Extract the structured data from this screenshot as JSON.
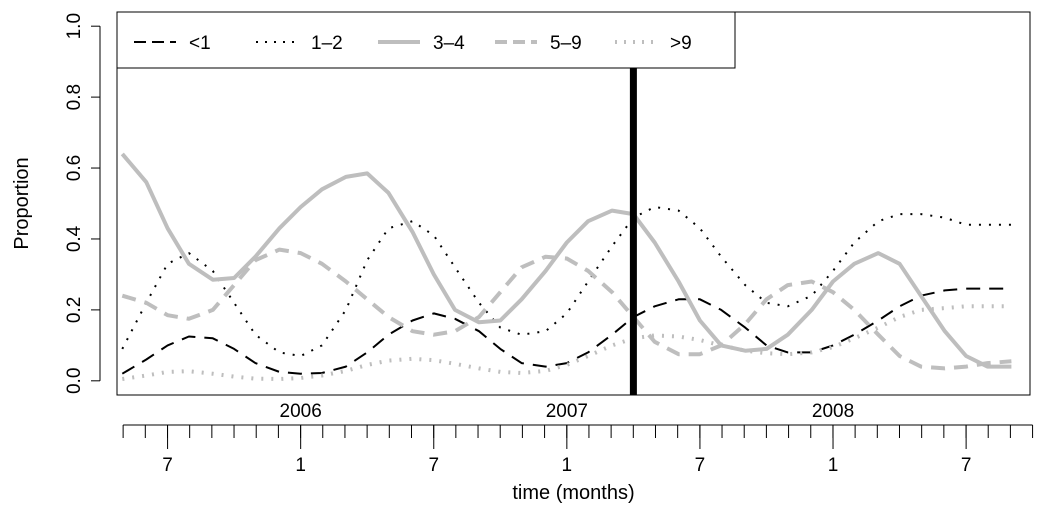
{
  "chart_data": {
    "type": "line",
    "title": "",
    "xlabel": "time (months)",
    "ylabel": "Proportion",
    "xlim": [
      2005.31,
      2008.74
    ],
    "ylim": [
      -0.04,
      1.04
    ],
    "y_ticks": [
      0.0,
      0.2,
      0.4,
      0.6,
      0.8,
      1.0
    ],
    "y_tick_labels": [
      "0.0",
      "0.2",
      "0.4",
      "0.6",
      "0.8",
      "1.0"
    ],
    "year_labels": [
      {
        "label": "2006",
        "x": 2006.0
      },
      {
        "label": "2007",
        "x": 2007.0
      },
      {
        "label": "2008",
        "x": 2008.0
      }
    ],
    "month_tick_start": 2005.333,
    "month_tick_count": 42,
    "month_labels": [
      {
        "label": "7",
        "x": 2005.5
      },
      {
        "label": "1",
        "x": 2006.0
      },
      {
        "label": "7",
        "x": 2006.5
      },
      {
        "label": "1",
        "x": 2007.0
      },
      {
        "label": "7",
        "x": 2007.5
      },
      {
        "label": "1",
        "x": 2008.0
      },
      {
        "label": "7",
        "x": 2008.5
      }
    ],
    "vline": {
      "x": 2007.25
    },
    "legend": {
      "position": "top-left"
    },
    "series": [
      {
        "name": "<1",
        "color": "#000000",
        "dash": "dashed",
        "x": [
          2005.33,
          2005.42,
          2005.5,
          2005.58,
          2005.67,
          2005.75,
          2005.83,
          2005.92,
          2006.0,
          2006.08,
          2006.17,
          2006.25,
          2006.33,
          2006.42,
          2006.5,
          2006.58,
          2006.67,
          2006.75,
          2006.83,
          2006.92,
          2007.0,
          2007.08,
          2007.17,
          2007.25,
          2007.33,
          2007.42,
          2007.5,
          2007.58,
          2007.67,
          2007.75,
          2007.83,
          2007.92,
          2008.0,
          2008.08,
          2008.17,
          2008.25,
          2008.33,
          2008.42,
          2008.5,
          2008.58,
          2008.67
        ],
        "y": [
          0.02,
          0.06,
          0.1,
          0.125,
          0.12,
          0.09,
          0.05,
          0.025,
          0.02,
          0.022,
          0.04,
          0.08,
          0.13,
          0.17,
          0.19,
          0.175,
          0.14,
          0.09,
          0.05,
          0.04,
          0.05,
          0.08,
          0.13,
          0.18,
          0.21,
          0.23,
          0.23,
          0.2,
          0.15,
          0.1,
          0.08,
          0.08,
          0.1,
          0.13,
          0.17,
          0.21,
          0.24,
          0.255,
          0.26,
          0.26,
          0.26
        ]
      },
      {
        "name": "1–2",
        "color": "#000000",
        "dash": "dotted",
        "x": [
          2005.33,
          2005.42,
          2005.5,
          2005.58,
          2005.67,
          2005.75,
          2005.83,
          2005.92,
          2006.0,
          2006.08,
          2006.17,
          2006.25,
          2006.33,
          2006.42,
          2006.5,
          2006.58,
          2006.67,
          2006.75,
          2006.83,
          2006.92,
          2007.0,
          2007.08,
          2007.17,
          2007.25,
          2007.33,
          2007.42,
          2007.5,
          2007.58,
          2007.67,
          2007.75,
          2007.83,
          2007.92,
          2008.0,
          2008.08,
          2008.17,
          2008.25,
          2008.33,
          2008.42,
          2008.5,
          2008.58,
          2008.67
        ],
        "y": [
          0.09,
          0.22,
          0.33,
          0.36,
          0.31,
          0.22,
          0.13,
          0.08,
          0.07,
          0.1,
          0.2,
          0.34,
          0.43,
          0.45,
          0.41,
          0.32,
          0.22,
          0.15,
          0.13,
          0.14,
          0.19,
          0.28,
          0.38,
          0.46,
          0.49,
          0.48,
          0.43,
          0.35,
          0.27,
          0.22,
          0.21,
          0.24,
          0.31,
          0.39,
          0.45,
          0.47,
          0.47,
          0.46,
          0.44,
          0.44,
          0.44
        ]
      },
      {
        "name": "3–4",
        "color": "#bebebe",
        "dash": "solid",
        "x": [
          2005.33,
          2005.42,
          2005.5,
          2005.58,
          2005.67,
          2005.75,
          2005.83,
          2005.92,
          2006.0,
          2006.08,
          2006.17,
          2006.25,
          2006.33,
          2006.42,
          2006.5,
          2006.58,
          2006.67,
          2006.75,
          2006.83,
          2006.92,
          2007.0,
          2007.08,
          2007.17,
          2007.25,
          2007.33,
          2007.42,
          2007.5,
          2007.58,
          2007.67,
          2007.75,
          2007.83,
          2007.92,
          2008.0,
          2008.08,
          2008.17,
          2008.25,
          2008.33,
          2008.42,
          2008.5,
          2008.58,
          2008.67
        ],
        "y": [
          0.64,
          0.56,
          0.43,
          0.33,
          0.285,
          0.29,
          0.35,
          0.43,
          0.49,
          0.54,
          0.575,
          0.585,
          0.53,
          0.42,
          0.3,
          0.2,
          0.165,
          0.17,
          0.23,
          0.31,
          0.39,
          0.45,
          0.48,
          0.47,
          0.39,
          0.28,
          0.17,
          0.1,
          0.085,
          0.09,
          0.13,
          0.2,
          0.28,
          0.33,
          0.36,
          0.33,
          0.24,
          0.14,
          0.07,
          0.04,
          0.04
        ]
      },
      {
        "name": "5–9",
        "color": "#bebebe",
        "dash": "dashed",
        "x": [
          2005.33,
          2005.42,
          2005.5,
          2005.58,
          2005.67,
          2005.75,
          2005.83,
          2005.92,
          2006.0,
          2006.08,
          2006.17,
          2006.25,
          2006.33,
          2006.42,
          2006.5,
          2006.58,
          2006.67,
          2006.75,
          2006.83,
          2006.92,
          2007.0,
          2007.08,
          2007.17,
          2007.25,
          2007.33,
          2007.42,
          2007.5,
          2007.58,
          2007.67,
          2007.75,
          2007.83,
          2007.92,
          2008.0,
          2008.08,
          2008.17,
          2008.25,
          2008.33,
          2008.42,
          2008.5,
          2008.58,
          2008.67
        ],
        "y": [
          0.24,
          0.22,
          0.185,
          0.175,
          0.2,
          0.27,
          0.34,
          0.37,
          0.36,
          0.33,
          0.28,
          0.23,
          0.18,
          0.14,
          0.13,
          0.14,
          0.18,
          0.25,
          0.32,
          0.35,
          0.345,
          0.31,
          0.25,
          0.18,
          0.11,
          0.075,
          0.075,
          0.1,
          0.16,
          0.23,
          0.27,
          0.28,
          0.25,
          0.2,
          0.13,
          0.07,
          0.04,
          0.035,
          0.04,
          0.05,
          0.055
        ]
      },
      {
        "name": ">9",
        "color": "#bebebe",
        "dash": "dotted",
        "x": [
          2005.33,
          2005.42,
          2005.5,
          2005.58,
          2005.67,
          2005.75,
          2005.83,
          2005.92,
          2006.0,
          2006.08,
          2006.17,
          2006.25,
          2006.33,
          2006.42,
          2006.5,
          2006.58,
          2006.67,
          2006.75,
          2006.83,
          2006.92,
          2007.0,
          2007.08,
          2007.17,
          2007.25,
          2007.33,
          2007.42,
          2007.5,
          2007.58,
          2007.67,
          2007.75,
          2007.83,
          2007.92,
          2008.0,
          2008.08,
          2008.17,
          2008.25,
          2008.33,
          2008.42,
          2008.5,
          2008.58,
          2008.67
        ],
        "y": [
          0.005,
          0.015,
          0.025,
          0.027,
          0.02,
          0.012,
          0.006,
          0.005,
          0.008,
          0.015,
          0.028,
          0.045,
          0.057,
          0.062,
          0.058,
          0.048,
          0.035,
          0.025,
          0.022,
          0.028,
          0.045,
          0.07,
          0.1,
          0.12,
          0.128,
          0.125,
          0.115,
          0.1,
          0.085,
          0.078,
          0.075,
          0.08,
          0.095,
          0.12,
          0.15,
          0.18,
          0.2,
          0.205,
          0.21,
          0.21,
          0.21
        ]
      }
    ]
  }
}
